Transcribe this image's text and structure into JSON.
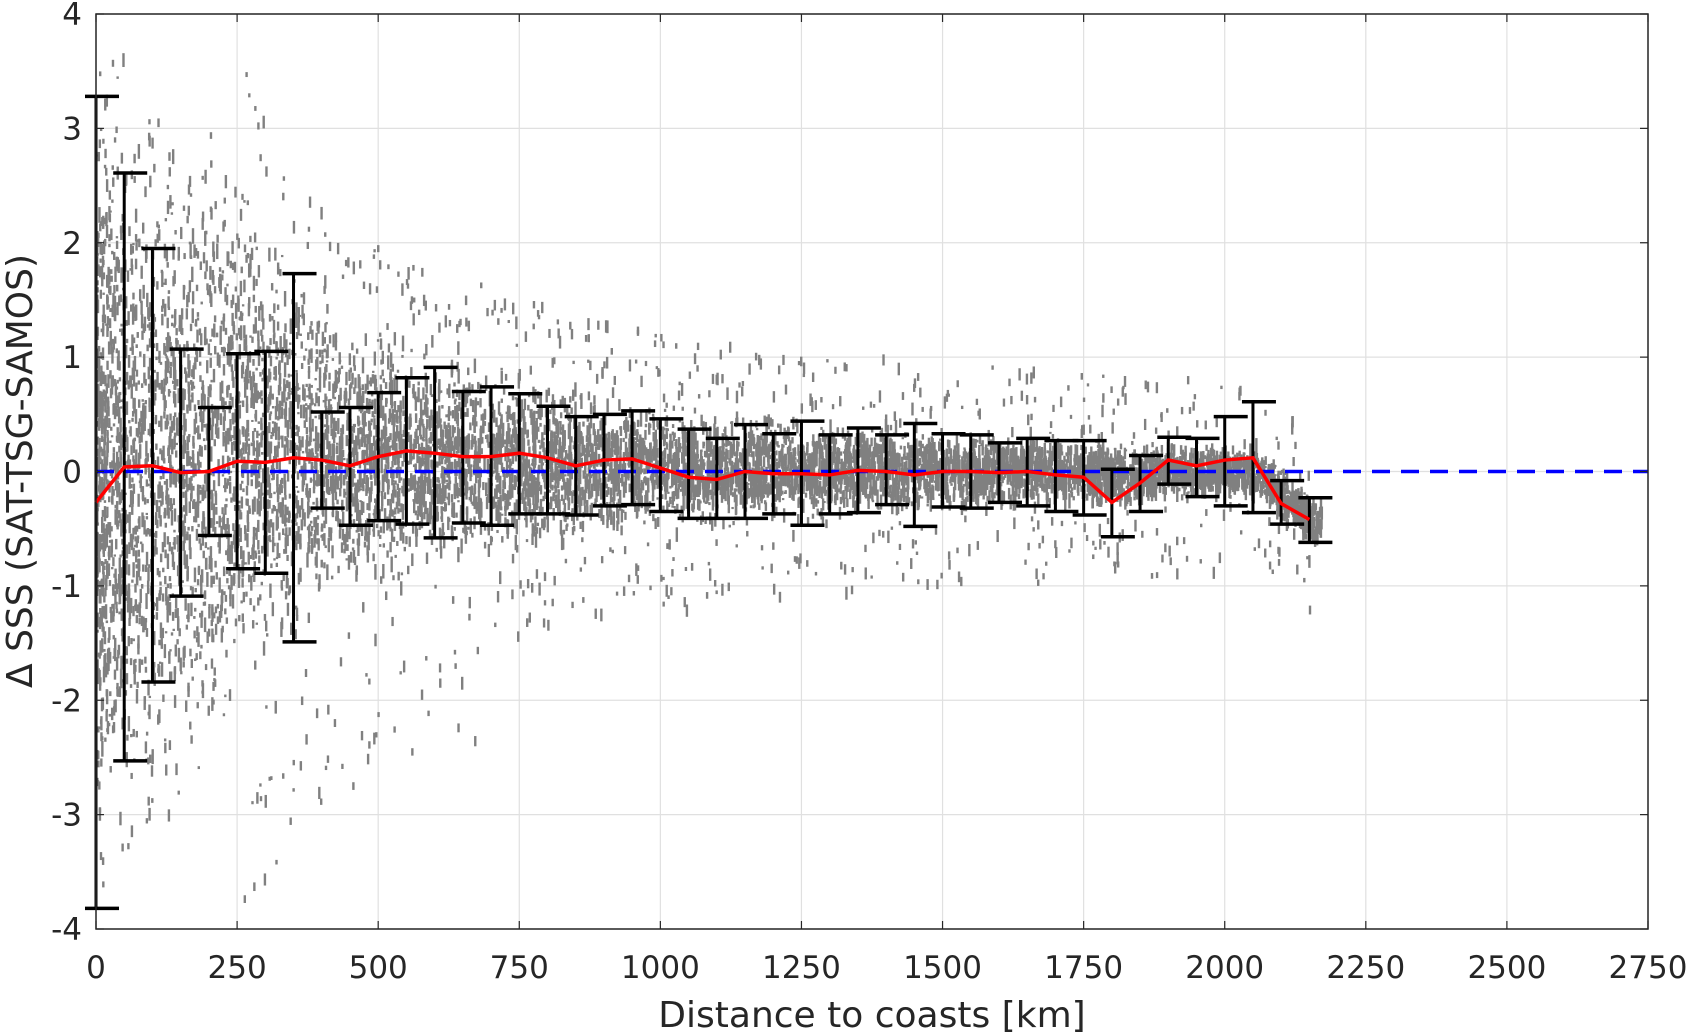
{
  "chart_data": {
    "type": "scatter",
    "title": "",
    "xlabel": "Distance to coasts [km]",
    "ylabel": "Δ SSS (SAT-TSG-SAMOS)",
    "xlim": [
      0,
      2750
    ],
    "ylim": [
      -4,
      4
    ],
    "grid": true,
    "x_ticks": [
      "0",
      "250",
      "500",
      "750",
      "1000",
      "1250",
      "1500",
      "1750",
      "2000",
      "2250",
      "2500",
      "2750"
    ],
    "y_ticks": [
      "4",
      "3",
      "2",
      "1",
      "0",
      "-1",
      "-2",
      "-3",
      "-4"
    ],
    "reference_line": {
      "y": 0,
      "style": "dashed",
      "color": "#0000ff"
    },
    "scatter_envelope": {
      "color": "#808080",
      "x": [
        0,
        50,
        100,
        150,
        200,
        250,
        300,
        350,
        400,
        450,
        500,
        550,
        600,
        650,
        700,
        750,
        800,
        850,
        900,
        950,
        1000,
        1050,
        1100,
        1150,
        1200,
        1250,
        1300,
        1350,
        1400,
        1450,
        1500,
        1550,
        1600,
        1650,
        1700,
        1750,
        1800,
        1850,
        1900,
        1950,
        2000,
        2050,
        2100,
        2150
      ],
      "upper": [
        4.0,
        4.0,
        4.0,
        3.6,
        3.4,
        3.2,
        2.6,
        2.1,
        1.8,
        1.6,
        1.5,
        1.3,
        1.25,
        1.2,
        1.1,
        1.05,
        0.95,
        0.85,
        0.8,
        0.75,
        0.7,
        0.65,
        0.6,
        0.6,
        0.55,
        0.55,
        0.5,
        0.5,
        0.5,
        0.45,
        0.45,
        0.42,
        0.4,
        0.4,
        0.38,
        0.35,
        0.32,
        0.3,
        0.3,
        0.3,
        0.3,
        0.3,
        0.1,
        -0.2
      ],
      "lower": [
        -4.0,
        -4.0,
        -4.0,
        -3.6,
        -3.2,
        -2.6,
        -2.0,
        -1.8,
        -1.4,
        -1.3,
        -1.2,
        -1.1,
        -1.0,
        -0.95,
        -0.9,
        -0.85,
        -0.8,
        -0.75,
        -0.7,
        -0.65,
        -0.6,
        -0.6,
        -0.55,
        -0.55,
        -0.5,
        -0.5,
        -0.5,
        -0.48,
        -0.45,
        -0.45,
        -0.42,
        -0.4,
        -0.4,
        -0.38,
        -0.38,
        -0.38,
        -0.38,
        -0.35,
        -0.3,
        -0.3,
        -0.3,
        -0.3,
        -0.5,
        -0.7
      ]
    },
    "mean_line": {
      "color": "#ff0000",
      "x": [
        0,
        50,
        100,
        150,
        200,
        250,
        300,
        350,
        400,
        450,
        500,
        550,
        600,
        650,
        700,
        750,
        800,
        850,
        900,
        950,
        1000,
        1050,
        1100,
        1150,
        1200,
        1250,
        1300,
        1350,
        1400,
        1450,
        1500,
        1550,
        1600,
        1650,
        1700,
        1750,
        1800,
        1850,
        1900,
        1950,
        2000,
        2050,
        2100,
        2150
      ],
      "y": [
        -0.27,
        0.04,
        0.05,
        -0.01,
        0.0,
        0.09,
        0.08,
        0.12,
        0.1,
        0.05,
        0.13,
        0.18,
        0.16,
        0.13,
        0.13,
        0.16,
        0.12,
        0.05,
        0.1,
        0.11,
        0.03,
        -0.05,
        -0.07,
        0.0,
        -0.02,
        -0.02,
        -0.03,
        0.01,
        0.0,
        -0.03,
        0.0,
        0.0,
        -0.01,
        0.0,
        -0.03,
        -0.05,
        -0.27,
        -0.1,
        0.1,
        0.05,
        0.1,
        0.12,
        -0.28,
        -0.42
      ]
    },
    "error_bars": {
      "color": "#000000",
      "x": [
        0,
        50,
        100,
        150,
        200,
        250,
        300,
        350,
        400,
        450,
        500,
        550,
        600,
        650,
        700,
        750,
        800,
        850,
        900,
        950,
        1000,
        1050,
        1100,
        1150,
        1200,
        1250,
        1300,
        1350,
        1400,
        1450,
        1500,
        1550,
        1600,
        1650,
        1700,
        1750,
        1800,
        1850,
        1900,
        1950,
        2000,
        2050,
        2100,
        2150
      ],
      "upper": [
        3.28,
        2.61,
        1.95,
        1.07,
        0.56,
        1.03,
        1.05,
        1.73,
        0.52,
        0.56,
        0.69,
        0.82,
        0.91,
        0.7,
        0.74,
        0.68,
        0.57,
        0.48,
        0.5,
        0.53,
        0.46,
        0.37,
        0.29,
        0.41,
        0.33,
        0.44,
        0.32,
        0.38,
        0.32,
        0.42,
        0.33,
        0.32,
        0.25,
        0.29,
        0.27,
        0.27,
        0.02,
        0.14,
        0.3,
        0.29,
        0.48,
        0.61,
        -0.08,
        -0.23
      ],
      "lower": [
        -3.82,
        -2.53,
        -1.84,
        -1.09,
        -0.56,
        -0.85,
        -0.89,
        -1.49,
        -0.32,
        -0.47,
        -0.43,
        -0.46,
        -0.58,
        -0.45,
        -0.47,
        -0.37,
        -0.37,
        -0.38,
        -0.3,
        -0.29,
        -0.35,
        -0.41,
        -0.41,
        -0.41,
        -0.37,
        -0.47,
        -0.37,
        -0.36,
        -0.29,
        -0.48,
        -0.31,
        -0.32,
        -0.27,
        -0.3,
        -0.35,
        -0.38,
        -0.57,
        -0.35,
        -0.11,
        -0.22,
        -0.3,
        -0.36,
        -0.46,
        -0.62
      ]
    }
  }
}
